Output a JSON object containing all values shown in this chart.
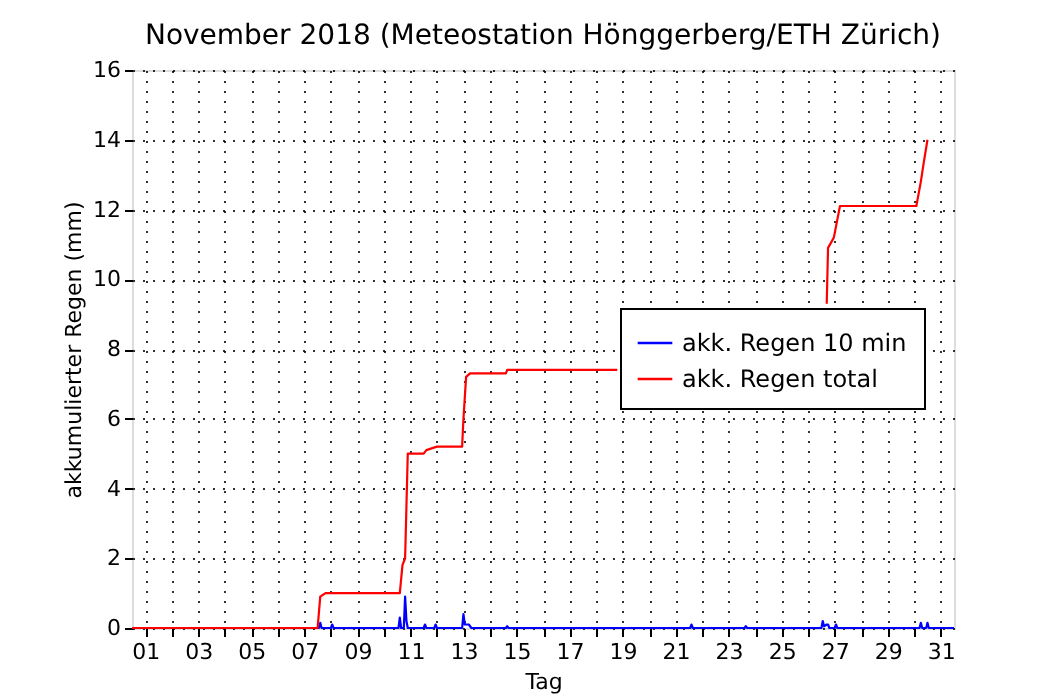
{
  "chart_data": {
    "type": "line",
    "title": "November 2018  (Meteostation Hönggerberg/ETH Zürich)",
    "xlabel": "Tag",
    "ylabel": "akkumulierter Regen (mm)",
    "xlim": [
      0.5,
      31.5
    ],
    "ylim": [
      0,
      16
    ],
    "yticks": [
      0,
      2,
      4,
      6,
      8,
      10,
      12,
      14,
      16
    ],
    "xticks": [
      {
        "value": 1,
        "label": "01"
      },
      {
        "value": 2,
        "label": null
      },
      {
        "value": 3,
        "label": "03"
      },
      {
        "value": 4,
        "label": null
      },
      {
        "value": 5,
        "label": "05"
      },
      {
        "value": 6,
        "label": null
      },
      {
        "value": 7,
        "label": "07"
      },
      {
        "value": 8,
        "label": null
      },
      {
        "value": 9,
        "label": "09"
      },
      {
        "value": 10,
        "label": null
      },
      {
        "value": 11,
        "label": "11"
      },
      {
        "value": 12,
        "label": null
      },
      {
        "value": 13,
        "label": "13"
      },
      {
        "value": 14,
        "label": null
      },
      {
        "value": 15,
        "label": "15"
      },
      {
        "value": 16,
        "label": null
      },
      {
        "value": 17,
        "label": "17"
      },
      {
        "value": 18,
        "label": null
      },
      {
        "value": 19,
        "label": "19"
      },
      {
        "value": 20,
        "label": null
      },
      {
        "value": 21,
        "label": "21"
      },
      {
        "value": 22,
        "label": null
      },
      {
        "value": 23,
        "label": "23"
      },
      {
        "value": 24,
        "label": null
      },
      {
        "value": 25,
        "label": "25"
      },
      {
        "value": 26,
        "label": null
      },
      {
        "value": 27,
        "label": "27"
      },
      {
        "value": 28,
        "label": null
      },
      {
        "value": 29,
        "label": "29"
      },
      {
        "value": 30,
        "label": null
      },
      {
        "value": 31,
        "label": "31"
      }
    ],
    "grid": true,
    "legend": "right",
    "line_style": "solid",
    "series": [
      {
        "name": "akk. Regen 10 min",
        "color": "#0000ff",
        "x": [
          0.5,
          7.55,
          7.6,
          7.65,
          8.0,
          8.05,
          8.1,
          10.55,
          10.6,
          10.65,
          10.75,
          10.8,
          10.85,
          10.9,
          11.5,
          11.55,
          11.6,
          11.9,
          11.95,
          12.0,
          12.95,
          13.0,
          13.05,
          13.2,
          13.25,
          13.3,
          14.6,
          14.65,
          14.7,
          21.55,
          21.6,
          21.65,
          23.6,
          23.65,
          23.7,
          26.5,
          26.55,
          26.6,
          26.7,
          26.75,
          26.8,
          27.0,
          27.05,
          27.1,
          30.2,
          30.25,
          30.3,
          30.45,
          30.5,
          30.55,
          31.5
        ],
        "values": [
          0,
          0,
          0.15,
          0,
          0,
          0.1,
          0,
          0,
          0.3,
          0,
          0,
          0.9,
          0.2,
          0,
          0,
          0.1,
          0,
          0,
          0.1,
          0,
          0,
          0.4,
          0.1,
          0.1,
          0.05,
          0,
          0,
          0.05,
          0,
          0,
          0.1,
          0,
          0,
          0.05,
          0,
          0,
          0.2,
          0.05,
          0.1,
          0.1,
          0,
          0,
          0.1,
          0,
          0,
          0.15,
          0,
          0,
          0.15,
          0,
          0
        ]
      },
      {
        "name": "akk. Regen total",
        "color": "#ff0000",
        "x": [
          0.5,
          7.5,
          7.6,
          7.8,
          10.6,
          10.7,
          10.8,
          10.9,
          11.5,
          11.6,
          12.0,
          12.95,
          13.0,
          13.1,
          13.25,
          14.6,
          14.65,
          18.8,
          22.0,
          26.7,
          26.75,
          26.9,
          26.97,
          27.2,
          30.08,
          30.25,
          30.35,
          30.5
        ],
        "values": [
          0,
          0,
          0.9,
          1.0,
          1.0,
          1.8,
          2.0,
          5.0,
          5.0,
          5.1,
          5.2,
          5.2,
          6.0,
          7.2,
          7.3,
          7.3,
          7.4,
          7.4,
          null,
          9.3,
          10.9,
          11.1,
          11.2,
          12.1,
          12.1,
          12.8,
          13.3,
          14.0
        ]
      }
    ]
  }
}
